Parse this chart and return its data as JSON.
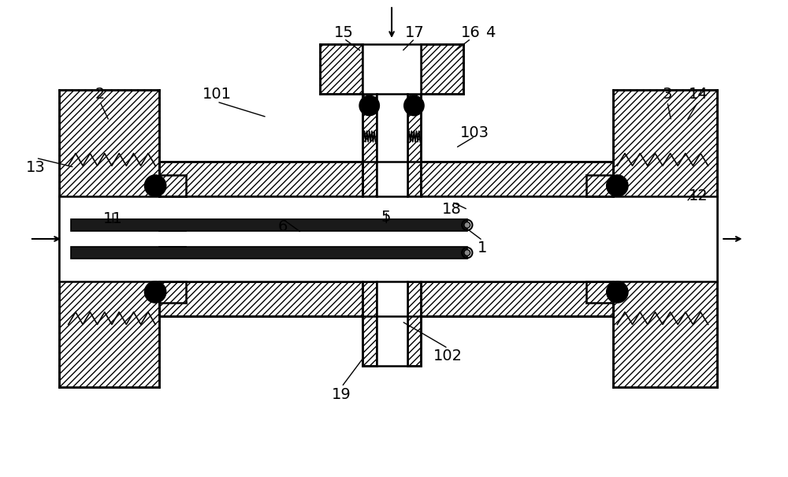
{
  "fig_width": 10.0,
  "fig_height": 6.05,
  "dpi": 100,
  "bg_color": "#ffffff",
  "line_color": "#000000"
}
